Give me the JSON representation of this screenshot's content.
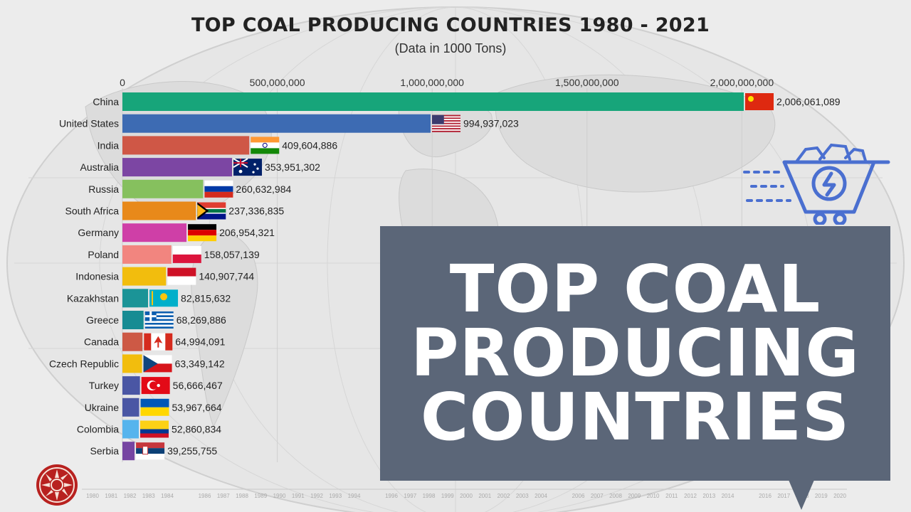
{
  "header": {
    "title": "TOP COAL PRODUCING COUNTRIES 1980 - 2021",
    "subtitle": "(Data in 1000 Tons)"
  },
  "overlay": {
    "lines": [
      "TOP COAL",
      "PRODUCING",
      "COUNTRIES"
    ]
  },
  "icons": {
    "cart": "coal-cart-icon",
    "logo": "sun-logo-icon"
  },
  "timeline": {
    "years": [
      "1980",
      "1981",
      "1982",
      "1983",
      "1984",
      "1986",
      "1987",
      "1988",
      "1989",
      "1990",
      "1991",
      "1992",
      "1993",
      "1994",
      "1996",
      "1997",
      "1998",
      "1999",
      "2000",
      "2001",
      "2002",
      "2003",
      "2004",
      "2006",
      "2007",
      "2008",
      "2009",
      "2010",
      "2011",
      "2012",
      "2013",
      "2014",
      "2016",
      "2017",
      "2018",
      "2019",
      "2020"
    ]
  },
  "chart_data": {
    "type": "bar",
    "orientation": "horizontal",
    "title": "TOP COAL PRODUCING COUNTRIES 1980 - 2021",
    "subtitle": "(Data in 1000 Tons)",
    "xlim": [
      0,
      2100000000
    ],
    "xticks": [
      0,
      500000000,
      1000000000,
      1500000000,
      2000000000
    ],
    "xtick_labels": [
      "0",
      "500,000,000",
      "1,000,000,000",
      "1,500,000,000",
      "2,000,000,000"
    ],
    "grid": true,
    "categories": [
      "China",
      "United States",
      "India",
      "Australia",
      "Russia",
      "South Africa",
      "Germany",
      "Poland",
      "Indonesia",
      "Kazakhstan",
      "Greece",
      "Canada",
      "Czech Republic",
      "Turkey",
      "Ukraine",
      "Colombia",
      "Serbia"
    ],
    "values": [
      2006061089,
      994937023,
      409604886,
      353951302,
      260632984,
      237336835,
      206954321,
      158057139,
      140907744,
      82815632,
      68269886,
      64994091,
      63349142,
      56666467,
      53967664,
      52860834,
      39255755
    ],
    "value_labels": [
      "2,006,061,089",
      "994,937,023",
      "409,604,886",
      "353,951,302",
      "260,632,984",
      "237,336,835",
      "206,954,321",
      "158,057,139",
      "140,907,744",
      "82,815,632",
      "68,269,886",
      "64,994,091",
      "63,349,142",
      "56,666,467",
      "53,967,664",
      "52,860,834",
      "39,255,755"
    ],
    "colors": [
      "#17a57a",
      "#3d6bb3",
      "#cf5746",
      "#7c46a3",
      "#86c05e",
      "#e8891a",
      "#cf3fa7",
      "#f2857f",
      "#f2bd0d",
      "#1b9497",
      "#178c93",
      "#cd5945",
      "#f2bd0d",
      "#4a56a4",
      "#4a56a4",
      "#56b4ed",
      "#7645a2"
    ],
    "flags": [
      "china-flag",
      "usa-flag",
      "india-flag",
      "australia-flag",
      "russia-flag",
      "south-africa-flag",
      "germany-flag",
      "poland-flag",
      "indonesia-flag",
      "kazakhstan-flag",
      "greece-flag",
      "canada-flag",
      "czech-flag",
      "turkey-flag",
      "ukraine-flag",
      "colombia-flag",
      "serbia-flag"
    ]
  }
}
